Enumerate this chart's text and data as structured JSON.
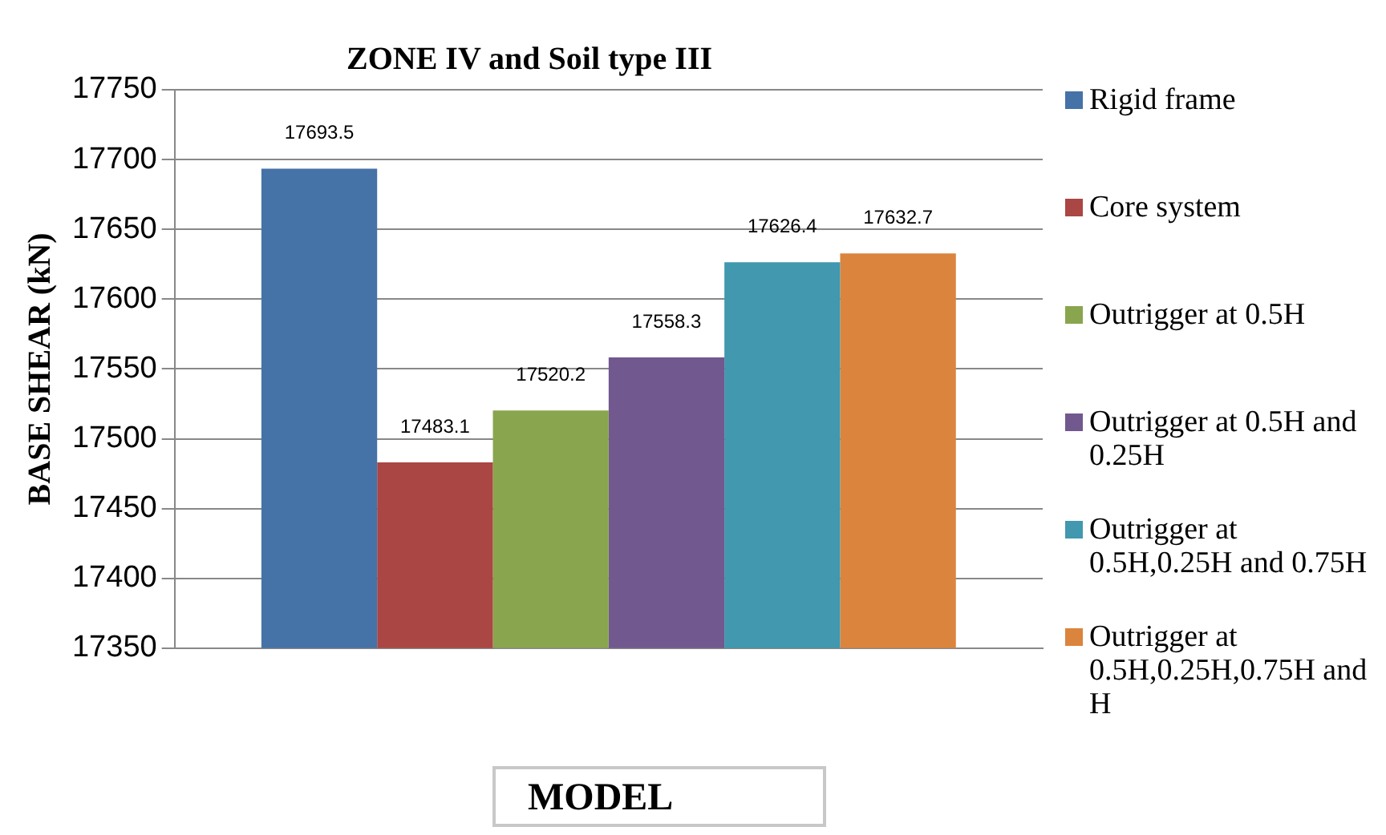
{
  "chart_data": {
    "type": "bar",
    "title": "ZONE IV and Soil type III",
    "xlabel": "MODEL",
    "ylabel": "BASE SHEAR (kN)",
    "categories": [
      null
    ],
    "series": [
      {
        "name": "Rigid frame",
        "color": "#4572a7",
        "values": [
          17693.5
        ]
      },
      {
        "name": "Core system",
        "color": "#aa4643",
        "values": [
          17483.1
        ]
      },
      {
        "name": "Outrigger at 0.5H",
        "color": "#89a54e",
        "values": [
          17520.2
        ]
      },
      {
        "name": "Outrigger at 0.5H and 0.25H",
        "color": "#71588f",
        "values": [
          17558.3
        ]
      },
      {
        "name": "Outrigger at 0.5H,0.25H and 0.75H",
        "color": "#4198af",
        "values": [
          17626.4
        ]
      },
      {
        "name": "Outrigger at 0.5H,0.25H,0.75H and H",
        "color": "#db843d",
        "values": [
          17632.7
        ]
      }
    ],
    "ylim": [
      17350,
      17750
    ],
    "yticks": [
      17350,
      17400,
      17450,
      17500,
      17550,
      17600,
      17650,
      17700,
      17750
    ],
    "grid": "y",
    "legend": "right",
    "data_labels": true
  }
}
